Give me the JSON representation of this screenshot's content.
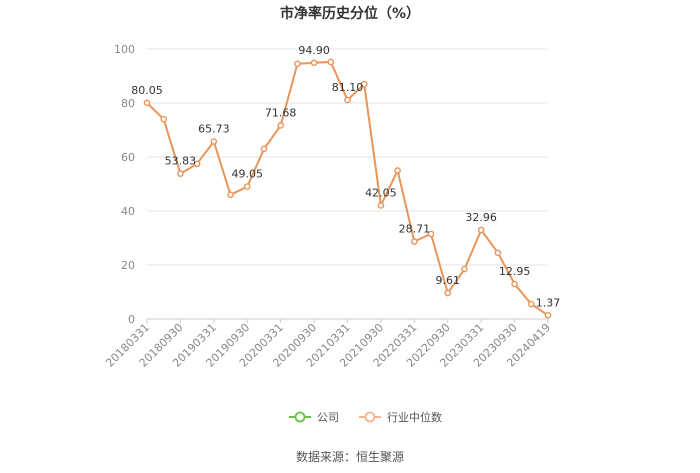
{
  "chart_data": {
    "type": "line",
    "title": "市净率历史分位（%）",
    "ylim": [
      0,
      100
    ],
    "yticks": [
      0,
      20,
      40,
      60,
      80,
      100
    ],
    "grid": true,
    "x": [
      "20180331",
      "20180630",
      "20180930",
      "20181231",
      "20190331",
      "20190630",
      "20190930",
      "20191231",
      "20200331",
      "20200630",
      "20200930",
      "20201231",
      "20210331",
      "20210630",
      "20210930",
      "20211231",
      "20220331",
      "20220630",
      "20220930",
      "20221231",
      "20230331",
      "20230630",
      "20230930",
      "20231231",
      "20240419"
    ],
    "xtick_labels": [
      "20180331",
      "20180930",
      "20190331",
      "20190930",
      "20200331",
      "20200930",
      "20210331",
      "20210930",
      "20220331",
      "20220930",
      "20230331",
      "20230930",
      "20240419"
    ],
    "series": [
      {
        "name": "行业中位数",
        "color": "#e8955a",
        "values": [
          80.05,
          74.0,
          53.83,
          57.5,
          65.73,
          46.0,
          49.05,
          63.0,
          71.68,
          94.5,
          94.9,
          95.2,
          81.1,
          87.0,
          42.05,
          55.0,
          28.71,
          31.5,
          9.61,
          18.5,
          32.96,
          24.5,
          12.95,
          5.5,
          1.37
        ],
        "labels": {
          "0": "80.05",
          "2": "53.83",
          "4": "65.73",
          "6": "49.05",
          "8": "71.68",
          "10": "94.90",
          "12": "81.10",
          "14": "42.05",
          "16": "28.71",
          "18": "9.61",
          "20": "32.96",
          "22": "12.95",
          "24": "1.37"
        }
      }
    ],
    "legend": {
      "position": "bottom",
      "items": [
        {
          "name": "公司",
          "color": "#6cc04a"
        },
        {
          "name": "行业中位数",
          "color": "#f4b48e"
        }
      ]
    }
  },
  "source_text": "数据来源：恒生聚源"
}
